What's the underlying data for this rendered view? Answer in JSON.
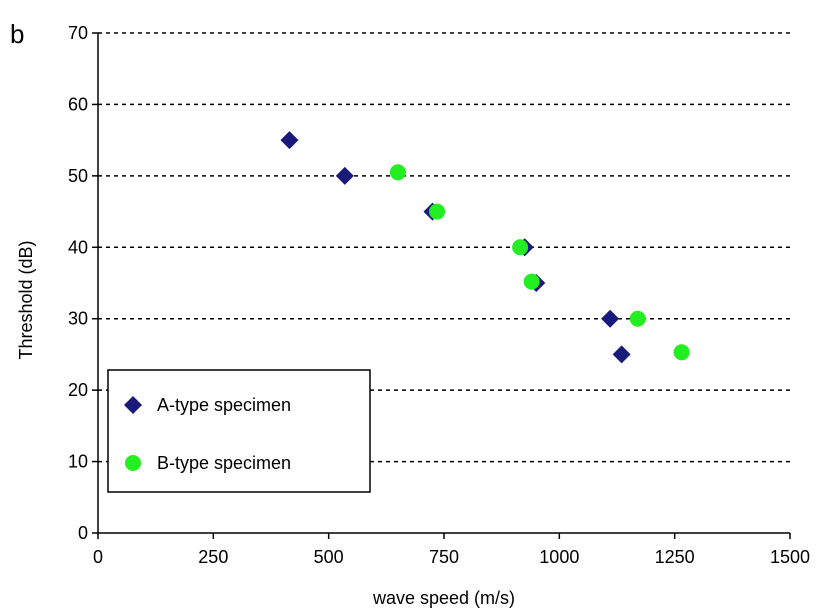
{
  "panel_label": "b",
  "chart_data": {
    "type": "scatter",
    "title": "",
    "xlabel": "wave speed (m/s)",
    "ylabel": "Threshold (dB)",
    "xlim": [
      0,
      1500
    ],
    "ylim": [
      0,
      70
    ],
    "x_ticks": [
      0,
      250,
      500,
      750,
      1000,
      1250,
      1500
    ],
    "y_ticks": [
      0,
      10,
      20,
      30,
      40,
      50,
      60,
      70
    ],
    "grid": "horizontal dashed",
    "legend_position": "bottom-left",
    "series": [
      {
        "name": "A-type specimen",
        "marker": "diamond",
        "color": "#1a1a7a",
        "points": [
          {
            "x": 415,
            "y": 55
          },
          {
            "x": 535,
            "y": 50
          },
          {
            "x": 725,
            "y": 45
          },
          {
            "x": 925,
            "y": 40
          },
          {
            "x": 950,
            "y": 35
          },
          {
            "x": 1110,
            "y": 30
          },
          {
            "x": 1135,
            "y": 25
          }
        ]
      },
      {
        "name": "B-type specimen",
        "marker": "circle",
        "color": "#22ee22",
        "points": [
          {
            "x": 650,
            "y": 50.5
          },
          {
            "x": 735,
            "y": 45
          },
          {
            "x": 915,
            "y": 40
          },
          {
            "x": 940,
            "y": 35.2
          },
          {
            "x": 1170,
            "y": 30
          },
          {
            "x": 1265,
            "y": 25.3
          }
        ]
      }
    ]
  }
}
